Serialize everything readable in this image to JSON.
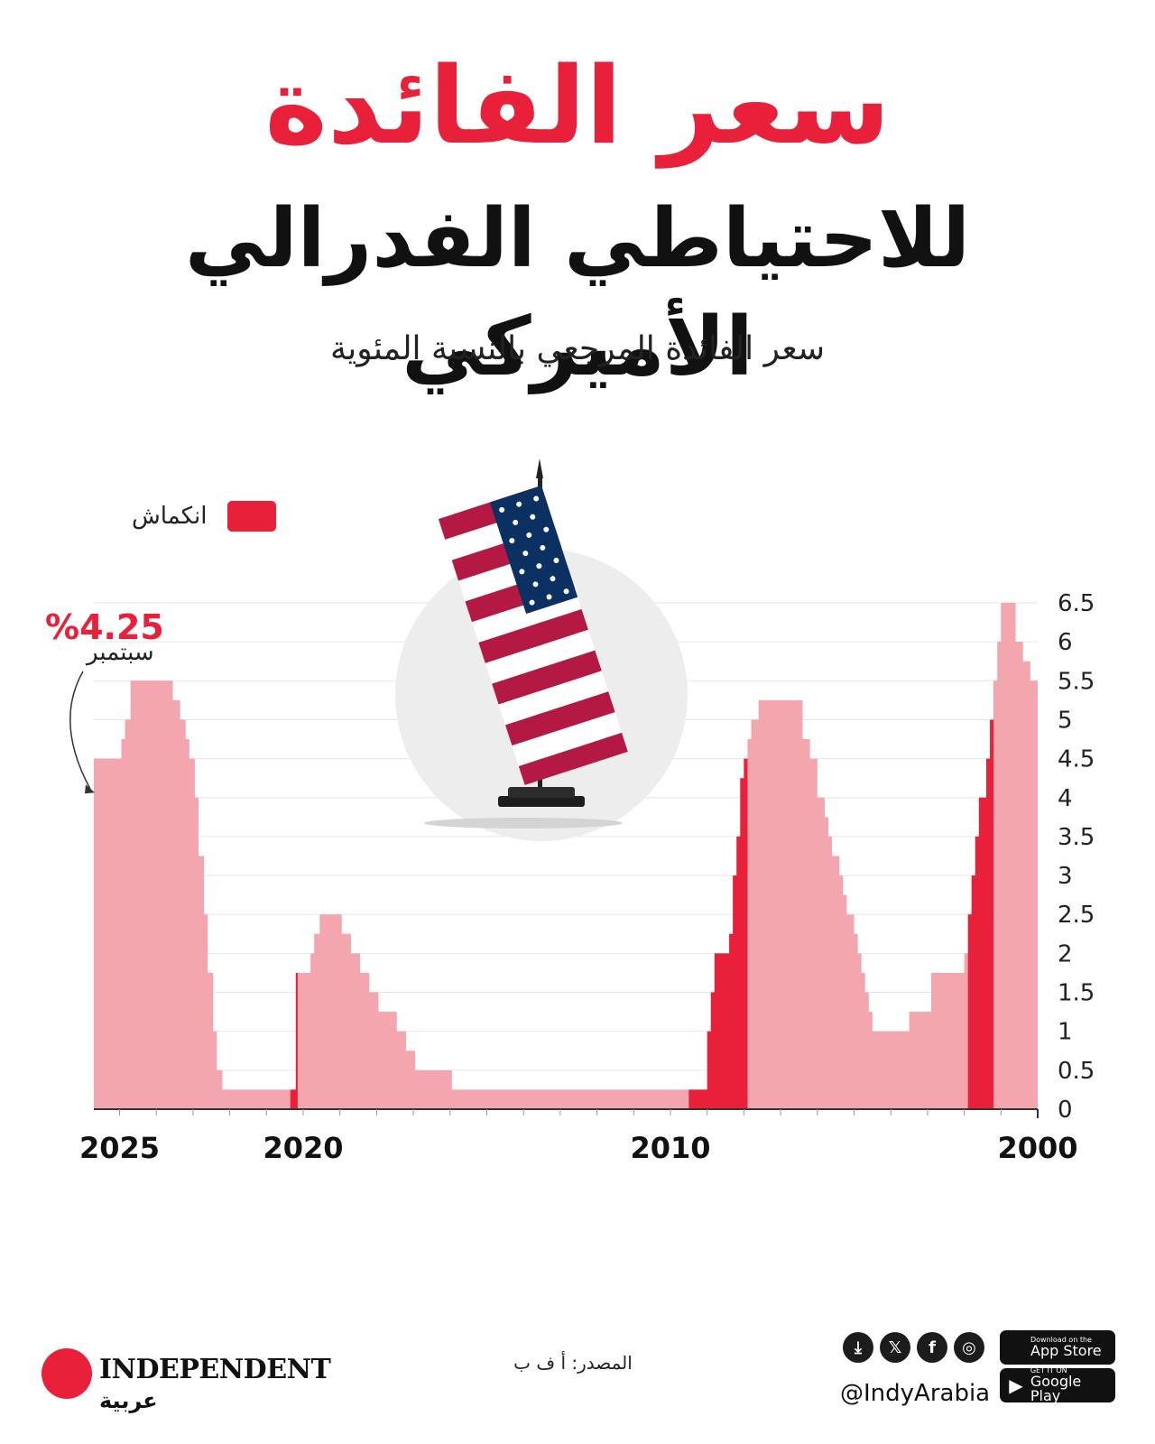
{
  "title_line1": "سعر الفائدة",
  "title_line2": "للاحتياطي الفدرالي الأميركي",
  "subtitle": "سعر الفائدة المرجعي بالنسبة المئوية",
  "legend": {
    "label": "انكماش",
    "color": "#e8203a"
  },
  "callout": {
    "value": "%4.25",
    "month": "سبتمبر"
  },
  "colors": {
    "area": "#f4a6ae",
    "recession": "#e8203a",
    "accent": "#e8203a"
  },
  "chart_data": {
    "type": "area",
    "title": "سعر الفائدة المرجعي بالنسبة المئوية",
    "x_direction": "right-to-left",
    "x_range": [
      2000,
      2025.7
    ],
    "ylim": [
      0,
      6.5
    ],
    "y_ticks": [
      "0",
      "0.5",
      "1",
      "1.5",
      "2",
      "2.5",
      "3",
      "3.5",
      "4",
      "4.5",
      "5",
      "5.5",
      "6",
      "6.5"
    ],
    "x_tick_labels": [
      "2025",
      "2020",
      "2010",
      "2000"
    ],
    "grid": true,
    "legend_position": "top-left",
    "series": [
      {
        "type": "step-area",
        "points": [
          [
            2000.0,
            5.5
          ],
          [
            2000.2,
            5.75
          ],
          [
            2000.4,
            6.0
          ],
          [
            2000.6,
            6.5
          ],
          [
            2001.0,
            6.0
          ],
          [
            2001.1,
            5.5
          ],
          [
            2001.2,
            5.0
          ],
          [
            2001.3,
            4.5
          ],
          [
            2001.4,
            4.0
          ],
          [
            2001.6,
            3.5
          ],
          [
            2001.7,
            3.0
          ],
          [
            2001.8,
            2.5
          ],
          [
            2001.9,
            2.0
          ],
          [
            2002.0,
            1.75
          ],
          [
            2002.9,
            1.25
          ],
          [
            2003.5,
            1.0
          ],
          [
            2004.5,
            1.25
          ],
          [
            2004.6,
            1.5
          ],
          [
            2004.7,
            1.75
          ],
          [
            2004.8,
            2.0
          ],
          [
            2004.9,
            2.25
          ],
          [
            2005.0,
            2.5
          ],
          [
            2005.2,
            2.75
          ],
          [
            2005.3,
            3.0
          ],
          [
            2005.4,
            3.25
          ],
          [
            2005.6,
            3.5
          ],
          [
            2005.7,
            3.75
          ],
          [
            2005.8,
            4.0
          ],
          [
            2006.0,
            4.5
          ],
          [
            2006.2,
            4.75
          ],
          [
            2006.4,
            5.25
          ],
          [
            2007.6,
            5.0
          ],
          [
            2007.8,
            4.75
          ],
          [
            2007.9,
            4.5
          ],
          [
            2008.0,
            4.25
          ],
          [
            2008.1,
            3.5
          ],
          [
            2008.2,
            3.0
          ],
          [
            2008.3,
            2.25
          ],
          [
            2008.4,
            2.0
          ],
          [
            2008.8,
            1.5
          ],
          [
            2008.9,
            1.0
          ],
          [
            2009.0,
            0.25
          ],
          [
            2015.95,
            0.5
          ],
          [
            2016.95,
            0.75
          ],
          [
            2017.2,
            1.0
          ],
          [
            2017.45,
            1.25
          ],
          [
            2017.95,
            1.5
          ],
          [
            2018.2,
            1.75
          ],
          [
            2018.45,
            2.0
          ],
          [
            2018.7,
            2.25
          ],
          [
            2018.95,
            2.5
          ],
          [
            2019.55,
            2.25
          ],
          [
            2019.7,
            2.0
          ],
          [
            2019.8,
            1.75
          ],
          [
            2020.2,
            0.25
          ],
          [
            2022.2,
            0.5
          ],
          [
            2022.35,
            1.0
          ],
          [
            2022.45,
            1.75
          ],
          [
            2022.6,
            2.5
          ],
          [
            2022.7,
            3.25
          ],
          [
            2022.85,
            4.0
          ],
          [
            2022.95,
            4.5
          ],
          [
            2023.1,
            4.75
          ],
          [
            2023.2,
            5.0
          ],
          [
            2023.35,
            5.25
          ],
          [
            2023.55,
            5.5
          ],
          [
            2024.7,
            5.0
          ],
          [
            2024.85,
            4.75
          ],
          [
            2024.95,
            4.5
          ],
          [
            2025.7,
            4.25
          ]
        ],
        "end_x": 2025.7
      }
    ],
    "recessions": [
      [
        2001.2,
        2001.9
      ],
      [
        2007.9,
        2009.5
      ],
      [
        2020.15,
        2020.35
      ]
    ],
    "annotation": {
      "x": 2025.7,
      "y": 4.25,
      "value": "%4.25",
      "month": "سبتمبر"
    }
  },
  "footer": {
    "logo_text": "INDEPENDENT",
    "logo_arabic": "عربية",
    "source": "المصدر: أ ف ب",
    "handle": "@IndyArabia",
    "social_icons": [
      "download-icon",
      "x-icon",
      "facebook-icon",
      "instagram-icon"
    ],
    "app_store": {
      "small": "Download on the",
      "big": "App Store"
    },
    "google_play": {
      "small": "GET IT ON",
      "big": "Google Play"
    }
  }
}
